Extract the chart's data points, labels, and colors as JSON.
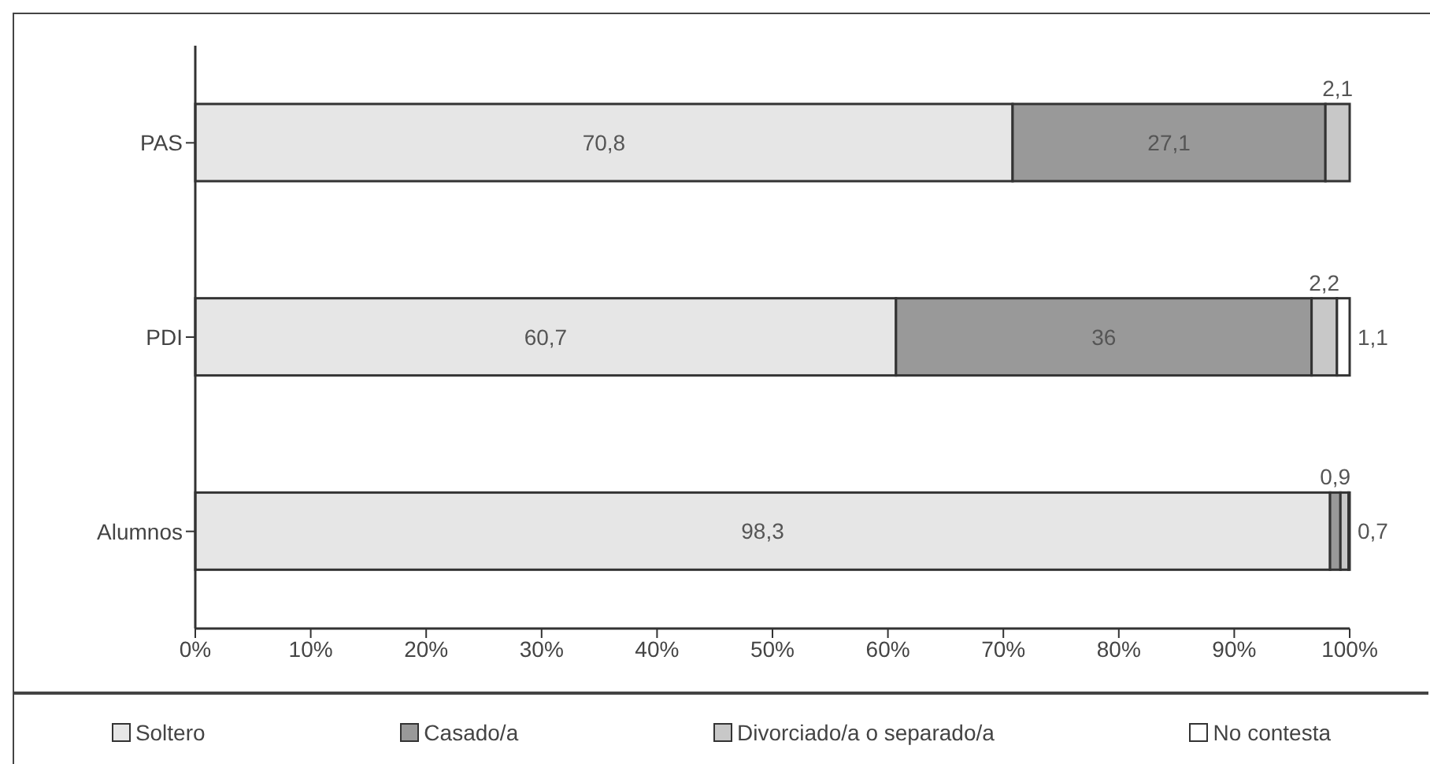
{
  "chart_data": {
    "type": "bar",
    "orientation": "horizontal",
    "stacked": true,
    "categories": [
      "PAS",
      "PDI",
      "Alumnos"
    ],
    "series": [
      {
        "name": "Soltero",
        "color": "#e6e6e6",
        "values": [
          70.8,
          60.7,
          98.3
        ],
        "value_labels": [
          "70,8",
          "60,7",
          "98,3"
        ]
      },
      {
        "name": "Casado/a",
        "color": "#999999",
        "values": [
          27.1,
          36,
          0.9
        ],
        "value_labels": [
          "27,1",
          "36",
          "0,9"
        ]
      },
      {
        "name": "Divorciado/a o separado/a",
        "color": "#c8c8c8",
        "values": [
          2.1,
          2.2,
          0.7
        ],
        "value_labels": [
          "2,1",
          "2,2",
          "0,7"
        ]
      },
      {
        "name": "No contesta",
        "color": "#ffffff",
        "values": [
          0,
          1.1,
          0.1
        ],
        "value_labels": [
          null,
          "1,1",
          null
        ]
      }
    ],
    "xlim": [
      0,
      100
    ],
    "xticks": [
      {
        "value": 0,
        "label": "0%"
      },
      {
        "value": 10,
        "label": "10%"
      },
      {
        "value": 20,
        "label": "20%"
      },
      {
        "value": 30,
        "label": "30%"
      },
      {
        "value": 40,
        "label": "40%"
      },
      {
        "value": 50,
        "label": "50%"
      },
      {
        "value": 60,
        "label": "60%"
      },
      {
        "value": 70,
        "label": "70%"
      },
      {
        "value": 80,
        "label": "80%"
      },
      {
        "value": 90,
        "label": "90%"
      },
      {
        "value": 100,
        "label": "100%"
      }
    ],
    "grid": false,
    "legend": "bottom"
  }
}
